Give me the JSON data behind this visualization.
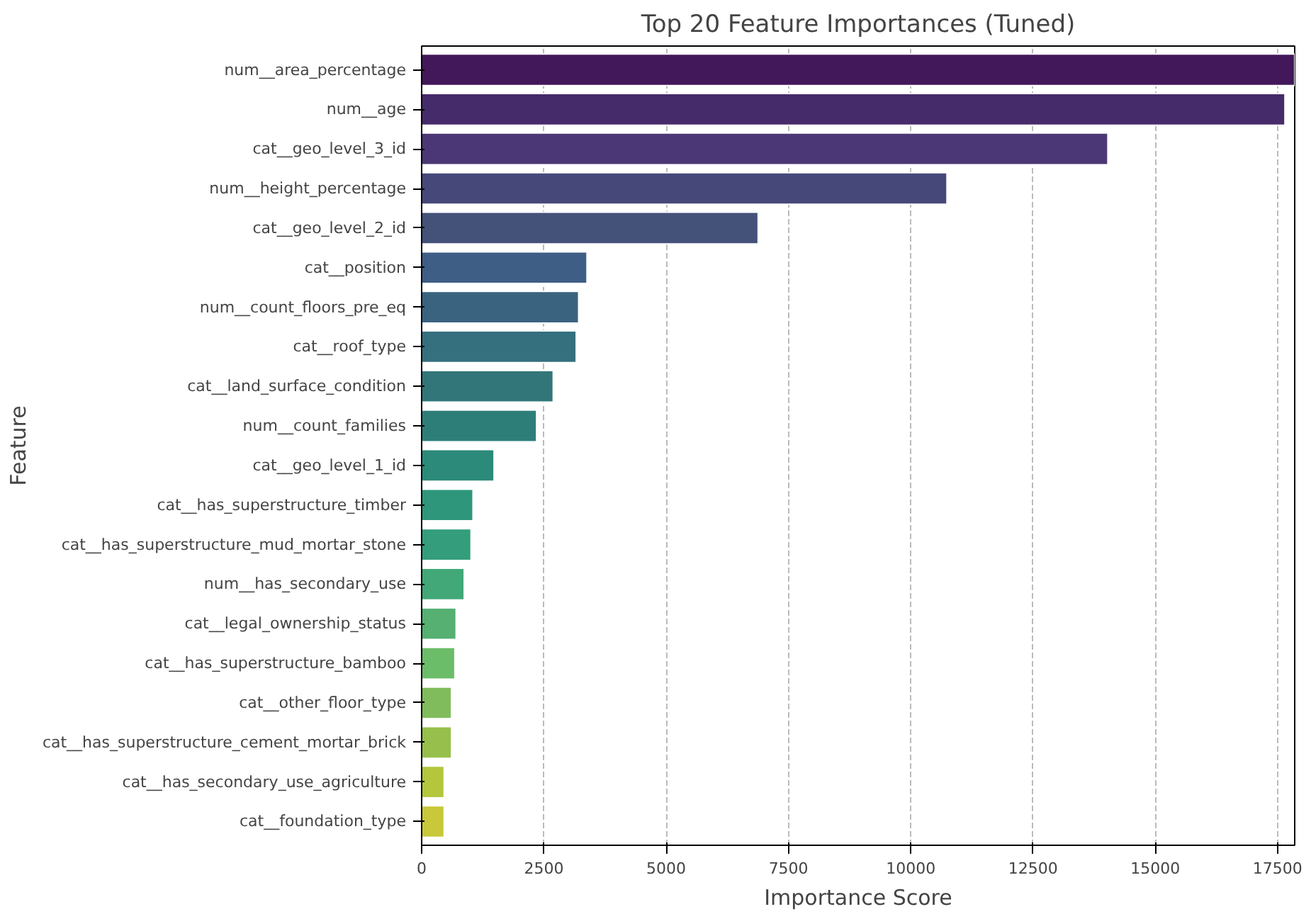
{
  "chart_data": {
    "type": "bar",
    "orientation": "horizontal",
    "title": "Top 20 Feature Importances (Tuned)",
    "xlabel": "Importance Score",
    "ylabel": "Feature",
    "categories": [
      "num__area_percentage",
      "num__age",
      "cat__geo_level_3_id",
      "num__height_percentage",
      "cat__geo_level_2_id",
      "cat__position",
      "num__count_floors_pre_eq",
      "cat__roof_type",
      "cat__land_surface_condition",
      "num__count_families",
      "cat__geo_level_1_id",
      "cat__has_superstructure_timber",
      "cat__has_superstructure_mud_mortar_stone",
      "num__has_secondary_use",
      "cat__legal_ownership_status",
      "cat__has_superstructure_bamboo",
      "cat__other_floor_type",
      "cat__has_superstructure_cement_mortar_brick",
      "cat__has_secondary_use_agriculture",
      "cat__foundation_type"
    ],
    "values": [
      17850,
      17650,
      14030,
      10740,
      6880,
      3380,
      3210,
      3160,
      2690,
      2350,
      1480,
      1050,
      1010,
      870,
      705,
      680,
      610,
      610,
      460,
      460
    ],
    "colors": [
      "#42185a",
      "#462b6a",
      "#4b3775",
      "#46487a",
      "#44527a",
      "#3f5e85",
      "#3a6380",
      "#35707f",
      "#32767a",
      "#2d7e79",
      "#2b8a7a",
      "#2d967b",
      "#339d7c",
      "#42a878",
      "#55b072",
      "#6cbd6a",
      "#80bc5b",
      "#96c04b",
      "#b4c63c",
      "#c8c83a"
    ],
    "xlim": [
      0,
      17850
    ],
    "xticks": [
      0,
      2500,
      5000,
      7500,
      10000,
      12500,
      15000,
      17500
    ],
    "grid": "x"
  }
}
